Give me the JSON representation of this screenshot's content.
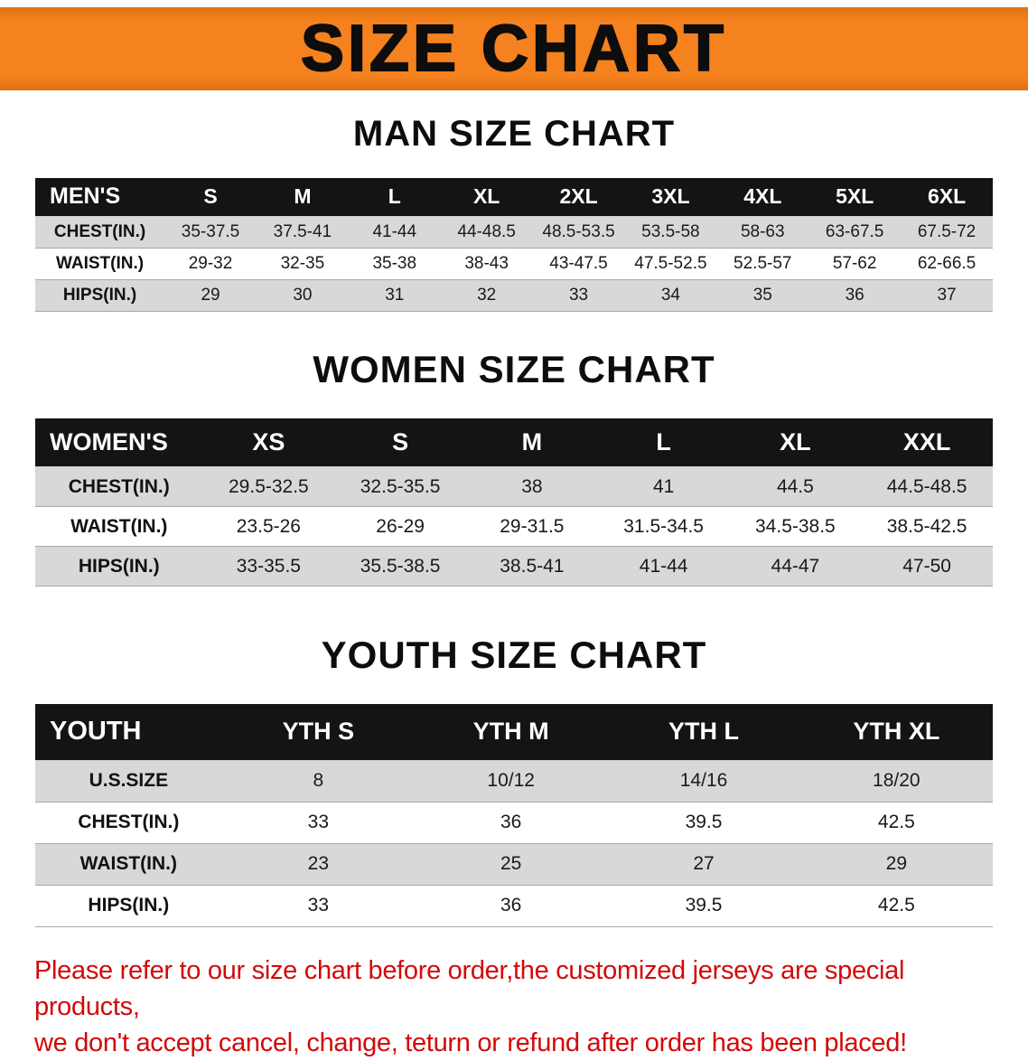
{
  "banner": {
    "title": "SIZE CHART"
  },
  "colors": {
    "orange": "#f5821f",
    "orange_dark": "#e0720f",
    "header_black": "#141414",
    "row_gray": "#d8d8d8",
    "red": "#d40808"
  },
  "sections": [
    {
      "title": "MAN SIZE CHART",
      "header": [
        "MEN'S",
        "S",
        "M",
        "L",
        "XL",
        "2XL",
        "3XL",
        "4XL",
        "5XL",
        "6XL"
      ],
      "rows": [
        {
          "label": "CHEST(IN.)",
          "values": [
            "35-37.5",
            "37.5-41",
            "41-44",
            "44-48.5",
            "48.5-53.5",
            "53.5-58",
            "58-63",
            "63-67.5",
            "67.5-72"
          ]
        },
        {
          "label": "WAIST(IN.)",
          "values": [
            "29-32",
            "32-35",
            "35-38",
            "38-43",
            "43-47.5",
            "47.5-52.5",
            "52.5-57",
            "57-62",
            "62-66.5"
          ]
        },
        {
          "label": "HIPS(IN.)",
          "values": [
            "29",
            "30",
            "31",
            "32",
            "33",
            "34",
            "35",
            "36",
            "37"
          ]
        }
      ]
    },
    {
      "title": "WOMEN SIZE CHART",
      "header": [
        "WOMEN'S",
        "XS",
        "S",
        "M",
        "L",
        "XL",
        "XXL"
      ],
      "rows": [
        {
          "label": "CHEST(IN.)",
          "values": [
            "29.5-32.5",
            "32.5-35.5",
            "38",
            "41",
            "44.5",
            "44.5-48.5"
          ]
        },
        {
          "label": "WAIST(IN.)",
          "values": [
            "23.5-26",
            "26-29",
            "29-31.5",
            "31.5-34.5",
            "34.5-38.5",
            "38.5-42.5"
          ]
        },
        {
          "label": "HIPS(IN.)",
          "values": [
            "33-35.5",
            "35.5-38.5",
            "38.5-41",
            "41-44",
            "44-47",
            "47-50"
          ]
        }
      ]
    },
    {
      "title": "YOUTH SIZE CHART",
      "header": [
        "YOUTH",
        "YTH S",
        "YTH M",
        "YTH L",
        "YTH XL"
      ],
      "rows": [
        {
          "label": "U.S.SIZE",
          "values": [
            "8",
            "10/12",
            "14/16",
            "18/20"
          ]
        },
        {
          "label": "CHEST(IN.)",
          "values": [
            "33",
            "36",
            "39.5",
            "42.5"
          ]
        },
        {
          "label": "WAIST(IN.)",
          "values": [
            "23",
            "25",
            "27",
            "29"
          ]
        },
        {
          "label": "HIPS(IN.)",
          "values": [
            "33",
            "36",
            "39.5",
            "42.5"
          ]
        }
      ]
    }
  ],
  "disclaimer": {
    "line1": "Please refer to our size chart before order,the customized jerseys are special products,",
    "line2": "we don't accept cancel, change, teturn or refund after order has been placed!"
  }
}
